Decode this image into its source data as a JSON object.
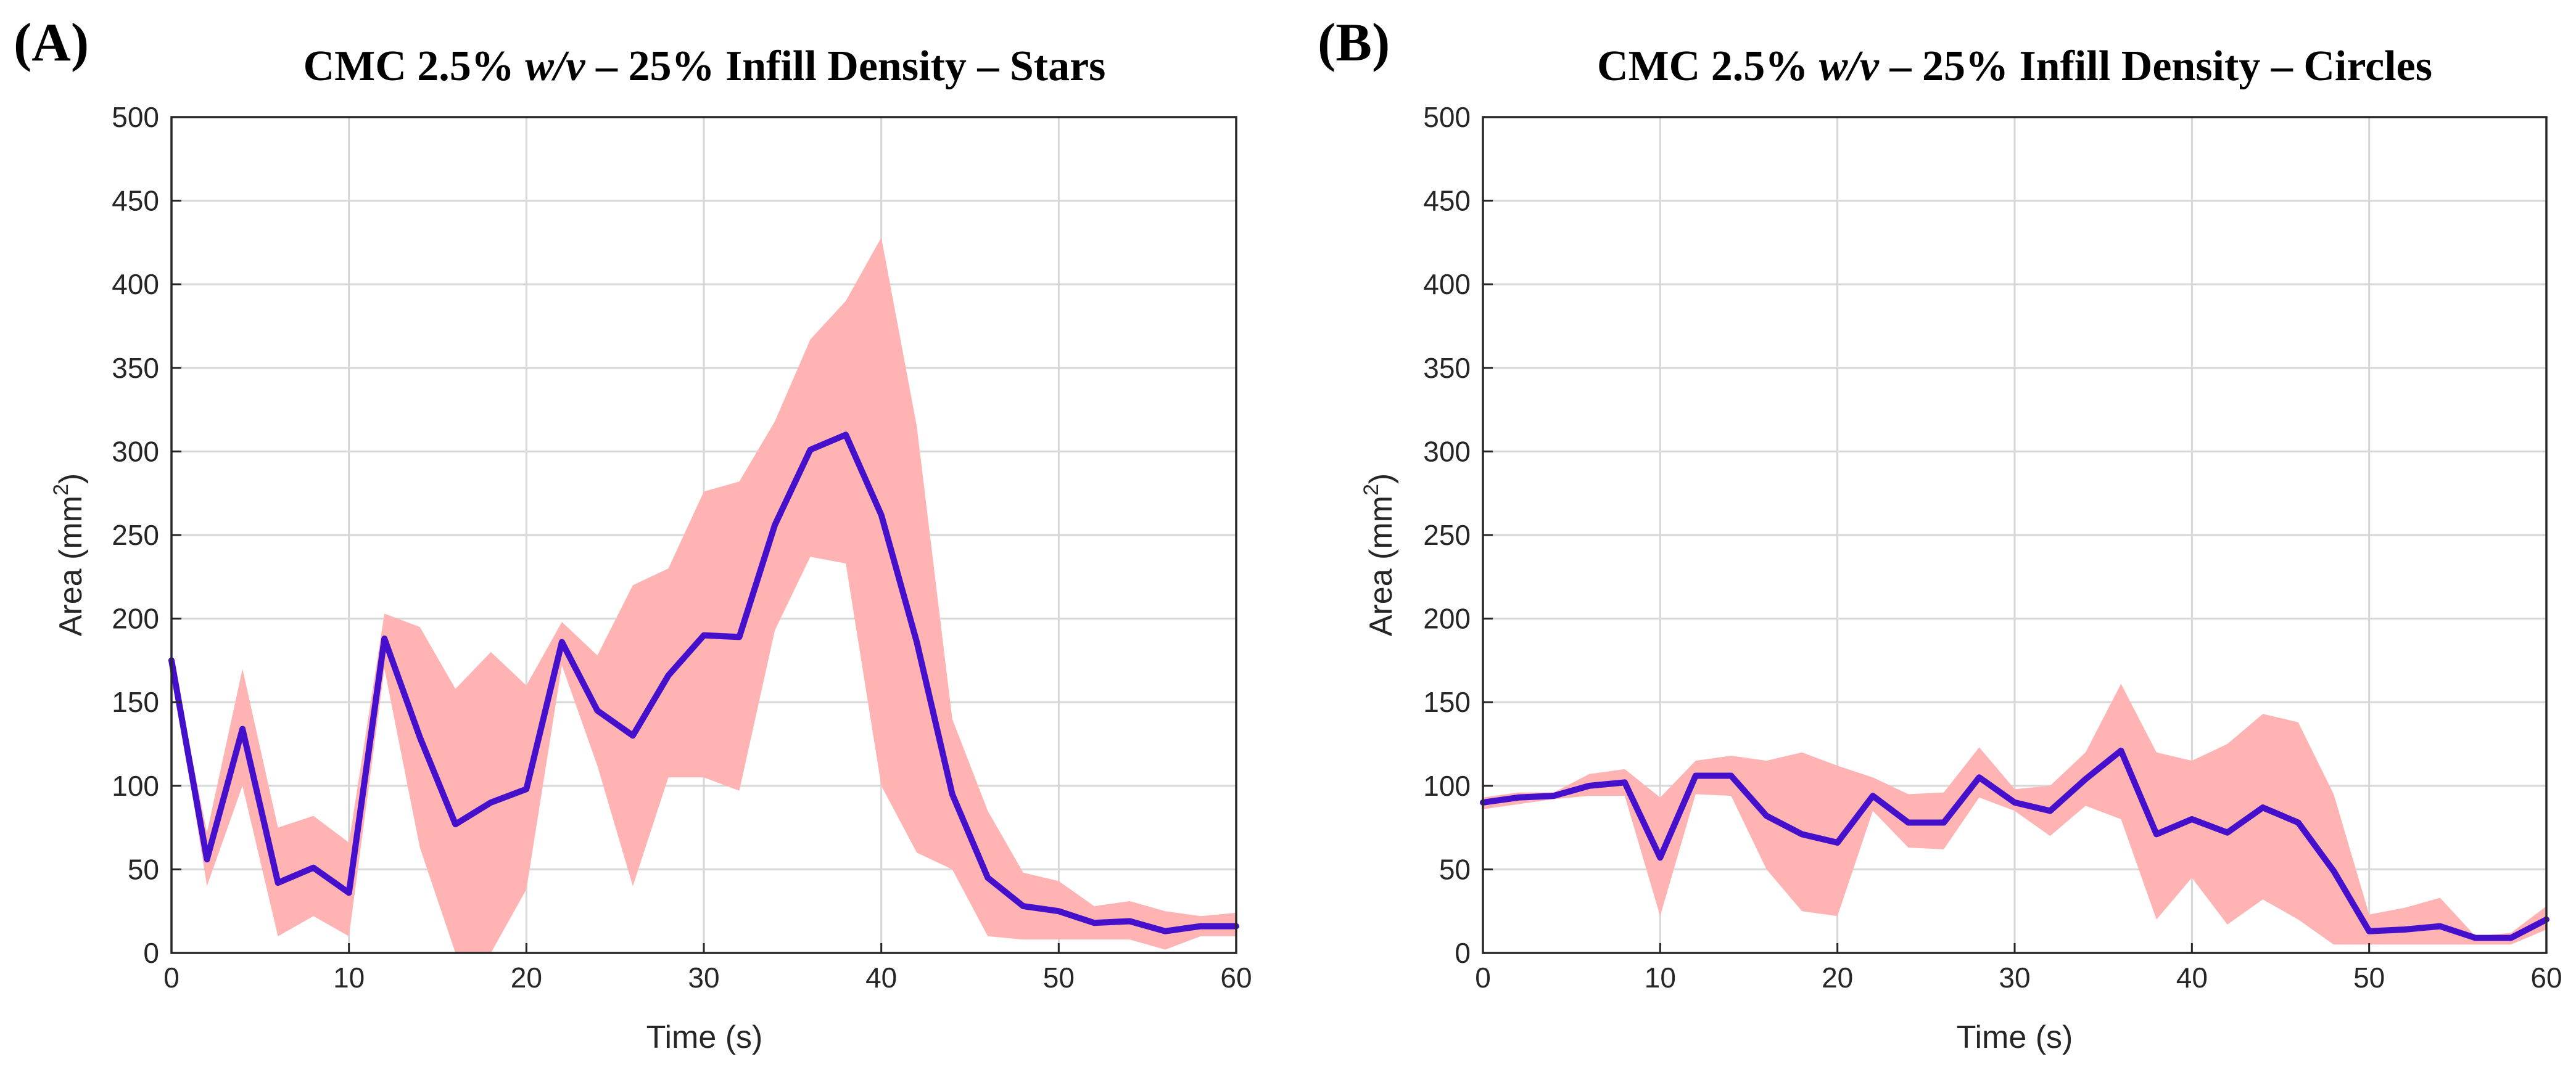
{
  "chart_data": [
    {
      "panel": "(A)",
      "type": "line",
      "title": {
        "prefix": "CMC 2.5% ",
        "italic": "w/v",
        "suffix": " – 25% Infill Density – Stars"
      },
      "xlabel": "Time (s)",
      "ylabel": {
        "base": "Area (mm",
        "sup": "2",
        "close": ")"
      },
      "xlim": [
        0,
        60
      ],
      "ylim": [
        0,
        500
      ],
      "xticks": [
        0,
        10,
        20,
        30,
        40,
        50,
        60
      ],
      "yticks": [
        0,
        50,
        100,
        150,
        200,
        250,
        300,
        350,
        400,
        450,
        500
      ],
      "grid": true,
      "x": [
        0,
        2,
        4,
        6,
        8,
        10,
        12,
        14,
        16,
        18,
        20,
        22,
        24,
        26,
        28,
        30,
        32,
        34,
        36,
        38,
        40,
        42,
        44,
        46,
        48,
        50,
        52,
        54,
        56,
        58,
        60
      ],
      "mean": [
        175,
        56,
        134,
        42,
        51,
        36,
        188,
        129,
        77,
        90,
        98,
        186,
        145,
        130,
        166,
        190,
        189,
        256,
        301,
        310,
        262,
        186,
        95,
        45,
        28,
        25,
        18,
        19,
        13,
        16,
        16
      ],
      "upper": [
        178,
        72,
        170,
        75,
        82,
        66,
        203,
        195,
        158,
        180,
        160,
        198,
        178,
        220,
        230,
        276,
        282,
        318,
        367,
        390,
        428,
        315,
        140,
        85,
        48,
        43,
        28,
        31,
        25,
        22,
        24
      ],
      "lower": [
        172,
        40,
        100,
        10,
        22,
        10,
        170,
        63,
        0,
        0,
        38,
        172,
        112,
        40,
        105,
        105,
        97,
        193,
        237,
        233,
        100,
        60,
        50,
        10,
        8,
        8,
        8,
        8,
        2,
        10,
        10
      ],
      "colors": {
        "line": "#4510cc",
        "band": "#ffb3b3"
      }
    },
    {
      "panel": "(B)",
      "type": "line",
      "title": {
        "prefix": "CMC 2.5% ",
        "italic": "w/v",
        "suffix": " – 25% Infill Density – Circles"
      },
      "xlabel": "Time (s)",
      "ylabel": {
        "base": "Area (mm",
        "sup": "2",
        "close": ")"
      },
      "xlim": [
        0,
        60
      ],
      "ylim": [
        0,
        500
      ],
      "xticks": [
        0,
        10,
        20,
        30,
        40,
        50,
        60
      ],
      "yticks": [
        0,
        50,
        100,
        150,
        200,
        250,
        300,
        350,
        400,
        450,
        500
      ],
      "grid": true,
      "x": [
        0,
        2,
        4,
        6,
        8,
        10,
        12,
        14,
        16,
        18,
        20,
        22,
        24,
        26,
        28,
        30,
        32,
        34,
        36,
        38,
        40,
        42,
        44,
        46,
        48,
        50,
        52,
        54,
        56,
        58,
        60
      ],
      "mean": [
        90,
        93,
        94,
        100,
        102,
        57,
        106,
        106,
        82,
        71,
        66,
        94,
        78,
        78,
        105,
        90,
        85,
        104,
        121,
        71,
        80,
        72,
        87,
        78,
        49,
        13,
        14,
        16,
        9,
        9,
        20
      ],
      "upper": [
        93,
        96,
        96,
        107,
        110,
        93,
        115,
        118,
        115,
        120,
        112,
        105,
        95,
        96,
        123,
        98,
        100,
        120,
        161,
        120,
        115,
        125,
        143,
        138,
        95,
        23,
        27,
        33,
        10,
        12,
        28
      ],
      "lower": [
        86,
        89,
        92,
        94,
        94,
        22,
        95,
        94,
        50,
        25,
        22,
        85,
        63,
        62,
        93,
        85,
        70,
        88,
        80,
        20,
        45,
        17,
        32,
        20,
        5,
        5,
        5,
        5,
        5,
        5,
        14
      ],
      "colors": {
        "line": "#4510cc",
        "band": "#ffb3b3"
      }
    }
  ]
}
